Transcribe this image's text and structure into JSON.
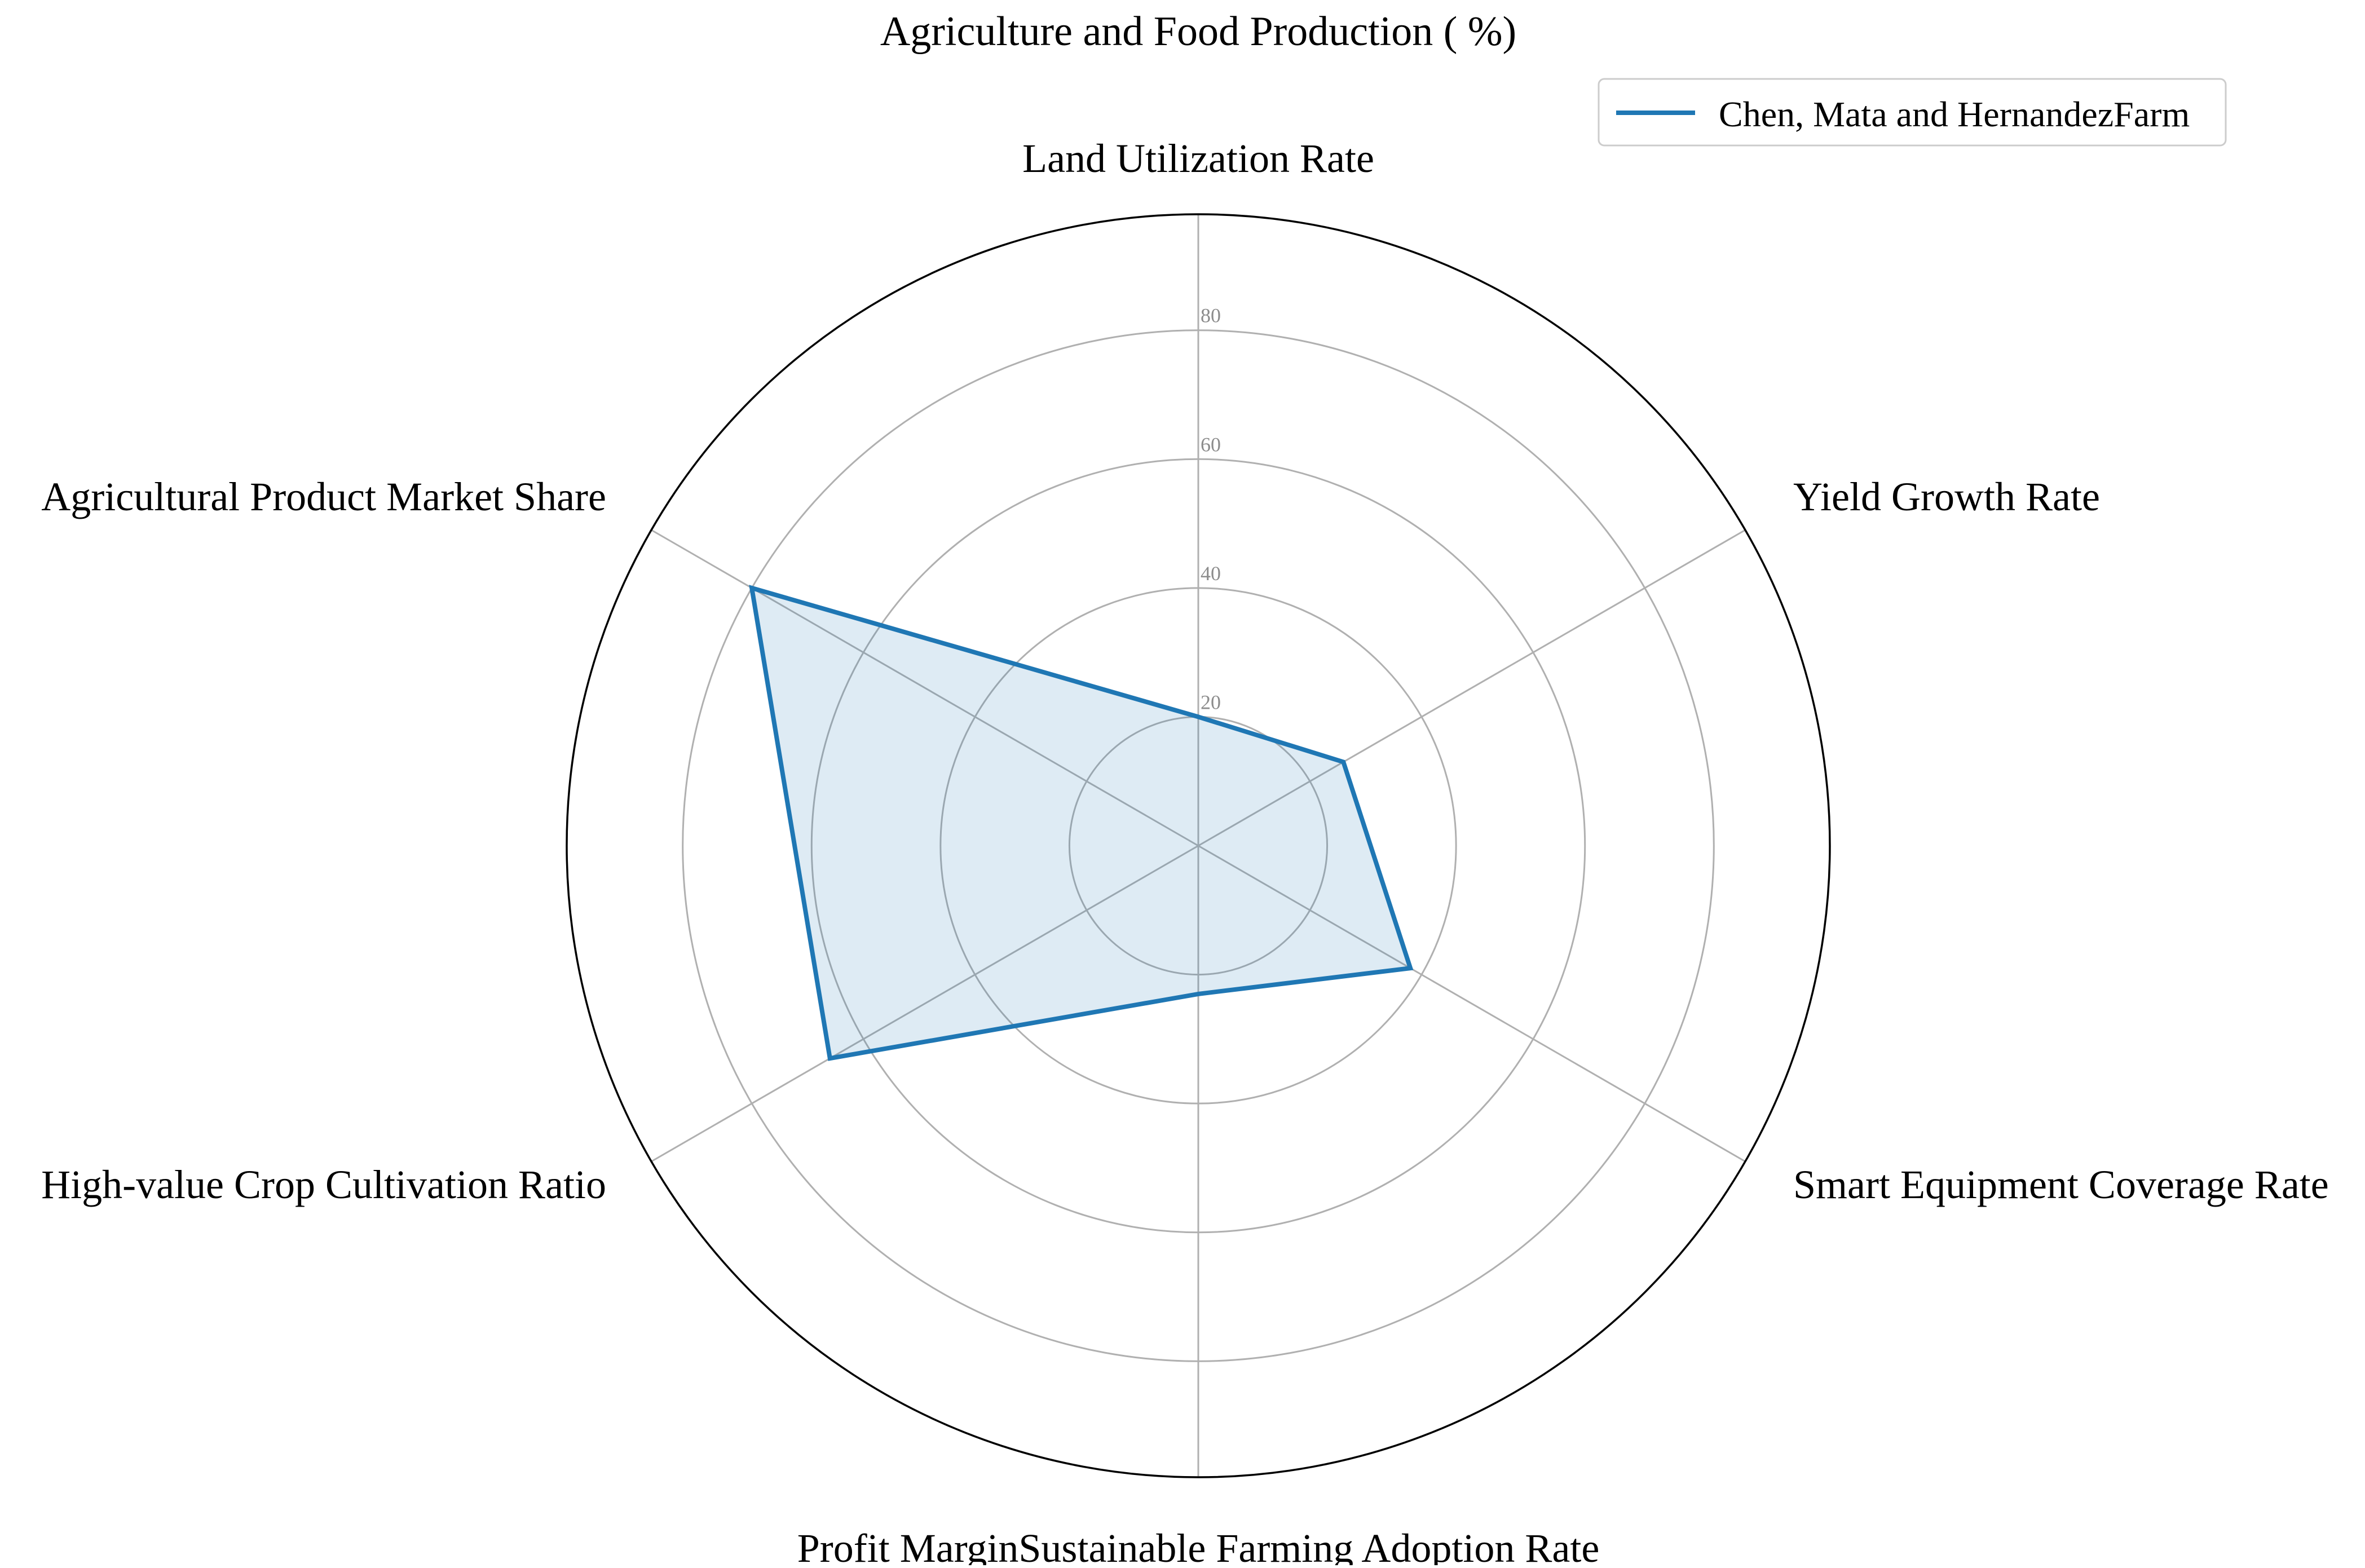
{
  "chart_data": {
    "type": "radar",
    "title": "Agriculture and Food Production ( %)",
    "categories": [
      "Land Utilization Rate",
      "Yield Growth Rate",
      "Smart Equipment Coverage Rate",
      "Profit MarginSustainable Farming Adoption Rate",
      "High-value Crop Cultivation Ratio",
      "Agricultural Product Market Share"
    ],
    "radial_ticks": [
      20,
      40,
      60,
      80
    ],
    "rlim": [
      0,
      98
    ],
    "grid": true,
    "legend_position": "top-right",
    "series": [
      {
        "name": "Chen, Mata and HernandezFarm",
        "values": [
          20,
          26,
          38,
          23,
          66,
          80
        ],
        "color": "#1f77b4",
        "fill_color": "#1f77b4",
        "fill_opacity": 0.15
      }
    ]
  }
}
